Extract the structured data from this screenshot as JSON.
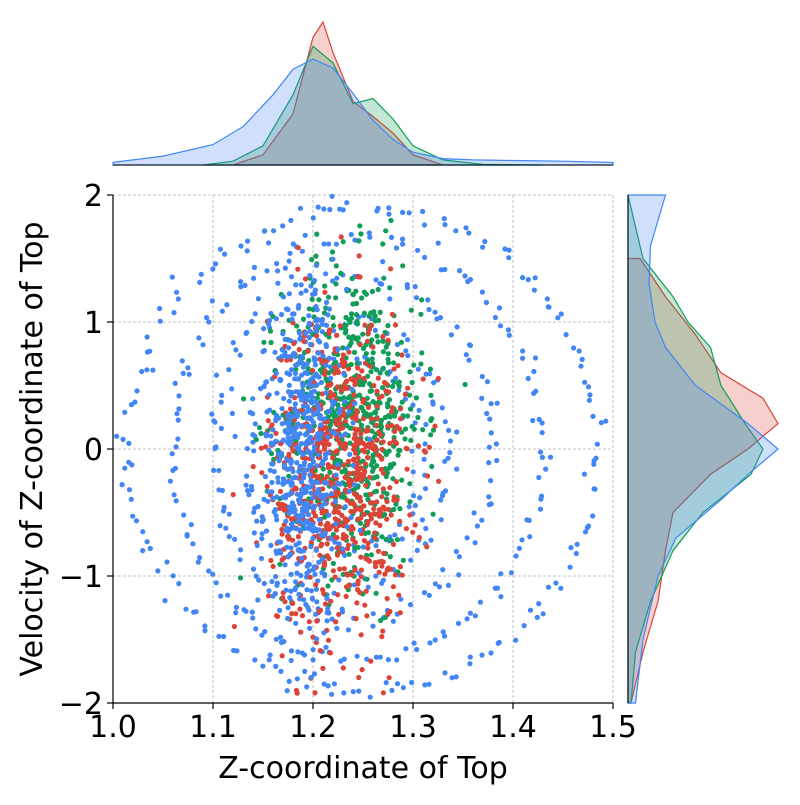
{
  "chart_data": {
    "type": "scatter",
    "title": "",
    "xlabel": "Z-coordinate of Top",
    "ylabel": "Velocity of Z-coordinate of Top",
    "xlim": [
      1.0,
      1.5
    ],
    "ylim": [
      -2,
      2
    ],
    "x_ticks": [
      1.0,
      1.1,
      1.2,
      1.3,
      1.4,
      1.5
    ],
    "x_tick_labels": [
      "1.0",
      "1.1",
      "1.2",
      "1.3",
      "1.4",
      "1.5"
    ],
    "y_ticks": [
      -2,
      -1,
      0,
      1,
      2
    ],
    "y_tick_labels": [
      "−2",
      "−1",
      "0",
      "1",
      "2"
    ],
    "grid": true,
    "grid_style": "dashed",
    "legend": "none",
    "marginals": {
      "top": "kde",
      "right": "kde"
    },
    "colors": [
      "#4285f4",
      "#0f9d58",
      "#db4437"
    ],
    "series": [
      {
        "color": "#4285f4",
        "cluster": {
          "x_center": 1.19,
          "x_spread": 0.022,
          "y_center": -0.05,
          "y_spread": 0.7,
          "count": 520
        },
        "orbits": [
          {
            "x_center": 1.24,
            "y_center": -0.05,
            "x_radius": 0.07,
            "y_radius": 0.75,
            "count": 80
          },
          {
            "x_center": 1.235,
            "y_center": -0.05,
            "x_radius": 0.1,
            "y_radius": 1.05,
            "count": 100
          },
          {
            "x_center": 1.24,
            "y_center": 0.0,
            "x_radius": 0.14,
            "y_radius": 1.35,
            "count": 120
          },
          {
            "x_center": 1.245,
            "y_center": 0.0,
            "x_radius": 0.185,
            "y_radius": 1.65,
            "count": 140
          },
          {
            "x_center": 1.25,
            "y_center": 0.0,
            "x_radius": 0.235,
            "y_radius": 1.9,
            "count": 160
          }
        ],
        "kde_x": {
          "x": [
            1.0,
            1.05,
            1.1,
            1.13,
            1.16,
            1.18,
            1.2,
            1.22,
            1.24,
            1.26,
            1.28,
            1.3,
            1.33,
            1.36,
            1.4,
            1.45,
            1.5
          ],
          "density": [
            0.2,
            0.7,
            1.6,
            3.0,
            5.5,
            7.5,
            8.3,
            7.6,
            5.6,
            3.5,
            2.0,
            1.0,
            0.5,
            0.4,
            0.35,
            0.3,
            0.2
          ]
        },
        "kde_y": {
          "y": [
            -2.0,
            -1.5,
            -1.2,
            -1.0,
            -0.7,
            -0.4,
            -0.2,
            0.0,
            0.2,
            0.5,
            0.8,
            1.0,
            1.3,
            1.6,
            2.0
          ],
          "density": [
            0.05,
            0.1,
            0.16,
            0.2,
            0.32,
            0.62,
            0.8,
            1.0,
            0.8,
            0.45,
            0.25,
            0.18,
            0.14,
            0.15,
            0.25
          ]
        }
      },
      {
        "color": "#0f9d58",
        "cluster": {
          "x_center": 1.24,
          "x_spread": 0.035,
          "y_center": 0.25,
          "y_spread": 0.6,
          "count": 650
        },
        "orbits": [],
        "kde_x": {
          "x": [
            1.09,
            1.12,
            1.15,
            1.18,
            1.2,
            1.22,
            1.24,
            1.26,
            1.28,
            1.3,
            1.33,
            1.37,
            1.43
          ],
          "density": [
            0.0,
            0.3,
            1.5,
            5.5,
            9.3,
            8.0,
            4.8,
            5.2,
            3.6,
            1.5,
            0.4,
            0.05,
            0.0
          ]
        },
        "kde_y": {
          "y": [
            -2.0,
            -1.6,
            -1.2,
            -0.8,
            -0.5,
            -0.2,
            0.0,
            0.2,
            0.5,
            0.8,
            1.0,
            1.2,
            1.5,
            2.0
          ],
          "density": [
            0.02,
            0.05,
            0.15,
            0.3,
            0.5,
            0.82,
            0.9,
            0.78,
            0.62,
            0.55,
            0.4,
            0.3,
            0.1,
            0.0
          ]
        }
      },
      {
        "color": "#db4437",
        "cluster": {
          "x_center": 1.225,
          "x_spread": 0.035,
          "y_center": -0.2,
          "y_spread": 0.65,
          "count": 700
        },
        "orbits": [],
        "kde_x": {
          "x": [
            1.12,
            1.15,
            1.18,
            1.2,
            1.21,
            1.22,
            1.24,
            1.26,
            1.28,
            1.3,
            1.33
          ],
          "density": [
            0.0,
            0.8,
            4.0,
            10.0,
            11.2,
            8.8,
            5.0,
            3.8,
            2.5,
            0.8,
            0.0
          ]
        },
        "kde_y": {
          "y": [
            -2.0,
            -1.6,
            -1.2,
            -0.8,
            -0.5,
            -0.2,
            0.0,
            0.2,
            0.4,
            0.6,
            0.9,
            1.2,
            1.5
          ],
          "density": [
            0.02,
            0.1,
            0.2,
            0.25,
            0.3,
            0.55,
            0.8,
            1.0,
            0.9,
            0.62,
            0.45,
            0.25,
            0.08
          ]
        }
      }
    ]
  }
}
